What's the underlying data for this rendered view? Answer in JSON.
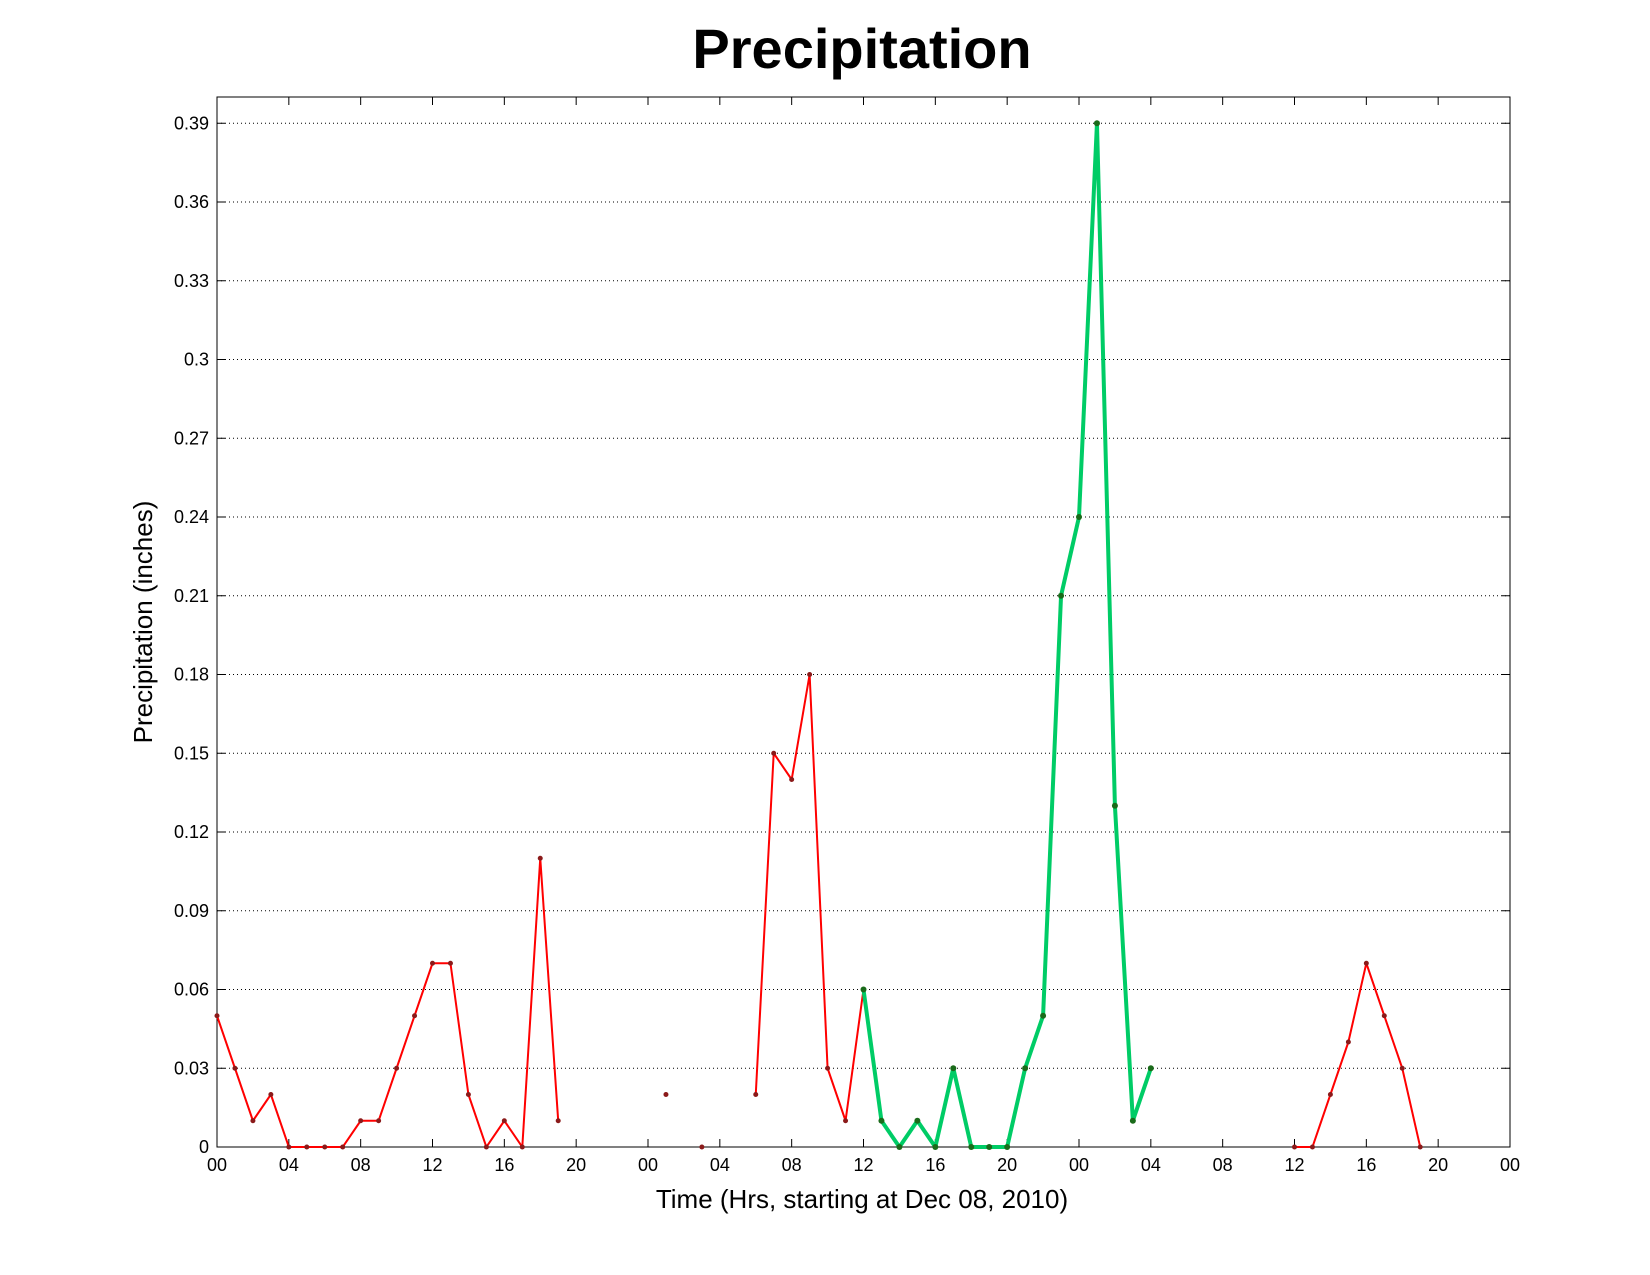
{
  "chart_data": {
    "type": "line",
    "title": "Precipitation",
    "xlabel": "Time (Hrs, starting at Dec 08, 2010)",
    "ylabel": "Precipitation (inches)",
    "xlim": [
      0,
      72
    ],
    "ylim": [
      0,
      0.4
    ],
    "grid": "y-dotted",
    "x_ticks": [
      0,
      4,
      8,
      12,
      16,
      20,
      24,
      28,
      32,
      36,
      40,
      44,
      48,
      52,
      56,
      60,
      64,
      68,
      72
    ],
    "x_tick_labels": [
      "00",
      "04",
      "08",
      "12",
      "16",
      "20",
      "00",
      "04",
      "08",
      "12",
      "16",
      "20",
      "00",
      "04",
      "08",
      "12",
      "16",
      "20",
      "00"
    ],
    "y_ticks": [
      0,
      0.03,
      0.06,
      0.09,
      0.12,
      0.15,
      0.18,
      0.21,
      0.24,
      0.27,
      0.3,
      0.33,
      0.36,
      0.39
    ],
    "y_tick_labels": [
      "0",
      "0.03",
      "0.06",
      "0.09",
      "0.12",
      "0.15",
      "0.18",
      "0.21",
      "0.24",
      "0.27",
      "0.3",
      "0.33",
      "0.36",
      "0.39"
    ],
    "series": [
      {
        "color": "#ff0000",
        "width": 2,
        "x": [
          0,
          1,
          2,
          3,
          4,
          5,
          6,
          7,
          8,
          9,
          10,
          11,
          12,
          13,
          14,
          15,
          16,
          17,
          18,
          19,
          20,
          21,
          22,
          23,
          24,
          25,
          26,
          27,
          28,
          29,
          30,
          31,
          32,
          33,
          34,
          35,
          36
        ],
        "y": [
          0.05,
          0.03,
          0.01,
          0.02,
          0,
          0,
          0,
          0,
          0.01,
          0.01,
          0.03,
          0.05,
          0.07,
          0.07,
          0.02,
          0,
          0.01,
          0,
          0.11,
          0.01,
          null,
          null,
          null,
          null,
          null,
          0.02,
          null,
          0,
          null,
          null,
          0.02,
          0.15,
          0.14,
          0.18,
          0.03,
          0.01,
          0.06
        ]
      },
      {
        "color": "#00cc66",
        "width": 4,
        "x": [
          36,
          37,
          38,
          39,
          40,
          41,
          42,
          43,
          44,
          45,
          46,
          47,
          48,
          49,
          50,
          51,
          52
        ],
        "y": [
          0.06,
          0.01,
          0,
          0.01,
          0,
          0.03,
          0,
          0,
          0,
          0.03,
          0.05,
          0.21,
          0.24,
          0.39,
          0.13,
          0.01,
          0.03
        ]
      },
      {
        "color": "#ff0000",
        "width": 2,
        "x": [
          60,
          61,
          62,
          63,
          64,
          65,
          66,
          67
        ],
        "y": [
          0,
          0,
          0.02,
          0.04,
          0.07,
          0.05,
          0.03,
          0
        ]
      }
    ],
    "marker_color": "#8b1a1a",
    "marker_color_green": "#1a6b1a"
  }
}
